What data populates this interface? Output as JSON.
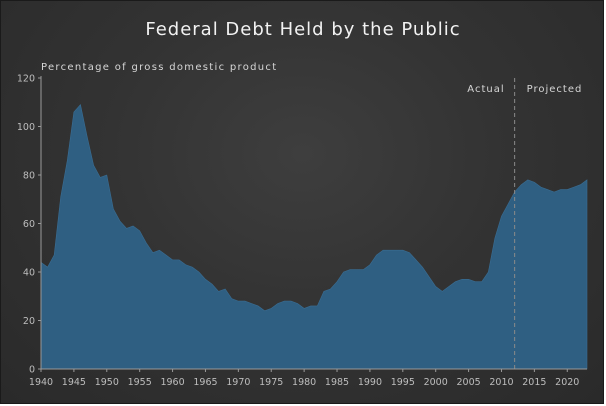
{
  "chart_data": {
    "type": "area",
    "title": "Federal Debt Held by the Public",
    "ylabel": "Percentage of gross domestic product",
    "xlabel": "",
    "xlim": [
      1940,
      2023
    ],
    "ylim": [
      0,
      120
    ],
    "x_ticks": [
      "1940",
      "1945",
      "1950",
      "1955",
      "1960",
      "1965",
      "1970",
      "1975",
      "1980",
      "1985",
      "1990",
      "1995",
      "2000",
      "2005",
      "2010",
      "2015",
      "2020"
    ],
    "y_ticks": [
      "0",
      "20",
      "40",
      "60",
      "80",
      "100",
      "120"
    ],
    "grid": false,
    "divider_year": 2012,
    "regions": [
      {
        "label": "Actual"
      },
      {
        "label": "Projected"
      }
    ],
    "colors": {
      "area": "#2f5f82",
      "background": "#333333",
      "divider": "#8a8a8a"
    },
    "series": [
      {
        "x": [
          1940,
          1941,
          1942,
          1943,
          1944,
          1945,
          1946,
          1947,
          1948,
          1949,
          1950,
          1951,
          1952,
          1953,
          1954,
          1955,
          1956,
          1957,
          1958,
          1959,
          1960,
          1961,
          1962,
          1963,
          1964,
          1965,
          1966,
          1967,
          1968,
          1969,
          1970,
          1971,
          1972,
          1973,
          1974,
          1975,
          1976,
          1977,
          1978,
          1979,
          1980,
          1981,
          1982,
          1983,
          1984,
          1985,
          1986,
          1987,
          1988,
          1989,
          1990,
          1991,
          1992,
          1993,
          1994,
          1995,
          1996,
          1997,
          1998,
          1999,
          2000,
          2001,
          2002,
          2003,
          2004,
          2005,
          2006,
          2007,
          2008,
          2009,
          2010,
          2011,
          2012,
          2013,
          2014,
          2015,
          2016,
          2017,
          2018,
          2019,
          2020,
          2021,
          2022,
          2023
        ],
        "values": [
          44,
          42,
          47,
          71,
          86,
          106,
          109,
          96,
          84,
          79,
          80,
          66,
          61,
          58,
          59,
          57,
          52,
          48,
          49,
          47,
          45,
          45,
          43,
          42,
          40,
          37,
          35,
          32,
          33,
          29,
          28,
          28,
          27,
          26,
          24,
          25,
          27,
          28,
          28,
          27,
          25,
          26,
          26,
          32,
          33,
          36,
          40,
          41,
          41,
          41,
          43,
          47,
          49,
          49,
          49,
          49,
          48,
          45,
          42,
          38,
          34,
          32,
          34,
          36,
          37,
          37,
          36,
          36,
          40,
          54,
          63,
          68,
          73,
          76,
          78,
          77,
          75,
          74,
          73,
          74,
          74,
          75,
          76,
          78
        ]
      }
    ]
  }
}
